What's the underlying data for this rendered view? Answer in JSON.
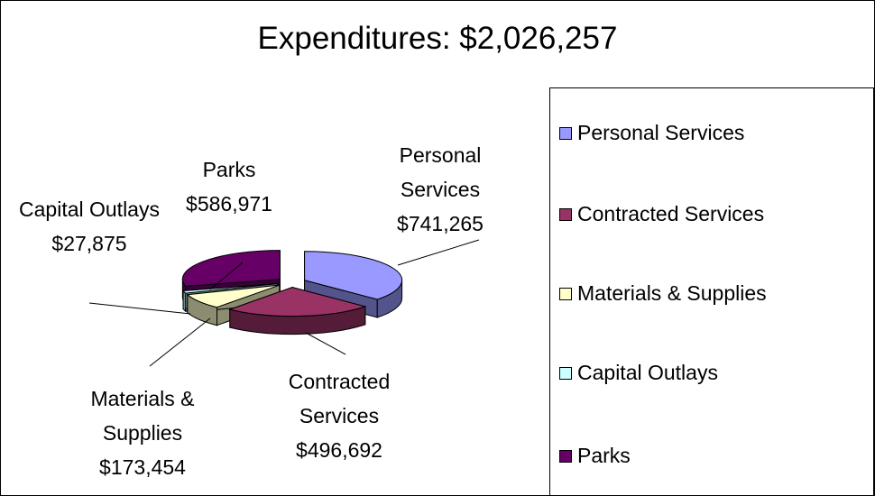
{
  "chart_data": {
    "type": "pie",
    "title": "Expenditures: $2,026,257",
    "categories": [
      "Personal Services",
      "Contracted Services",
      "Materials & Supplies",
      "Capital Outlays",
      "Parks"
    ],
    "values": [
      741265,
      496692,
      173454,
      27875,
      586971
    ],
    "value_labels": [
      "$741,265",
      "$496,692",
      "$173,454",
      "$27,875",
      "$586,971"
    ],
    "colors": [
      "#9999ff",
      "#993366",
      "#ffffcc",
      "#ccffff",
      "#660066"
    ],
    "legend": "right"
  }
}
